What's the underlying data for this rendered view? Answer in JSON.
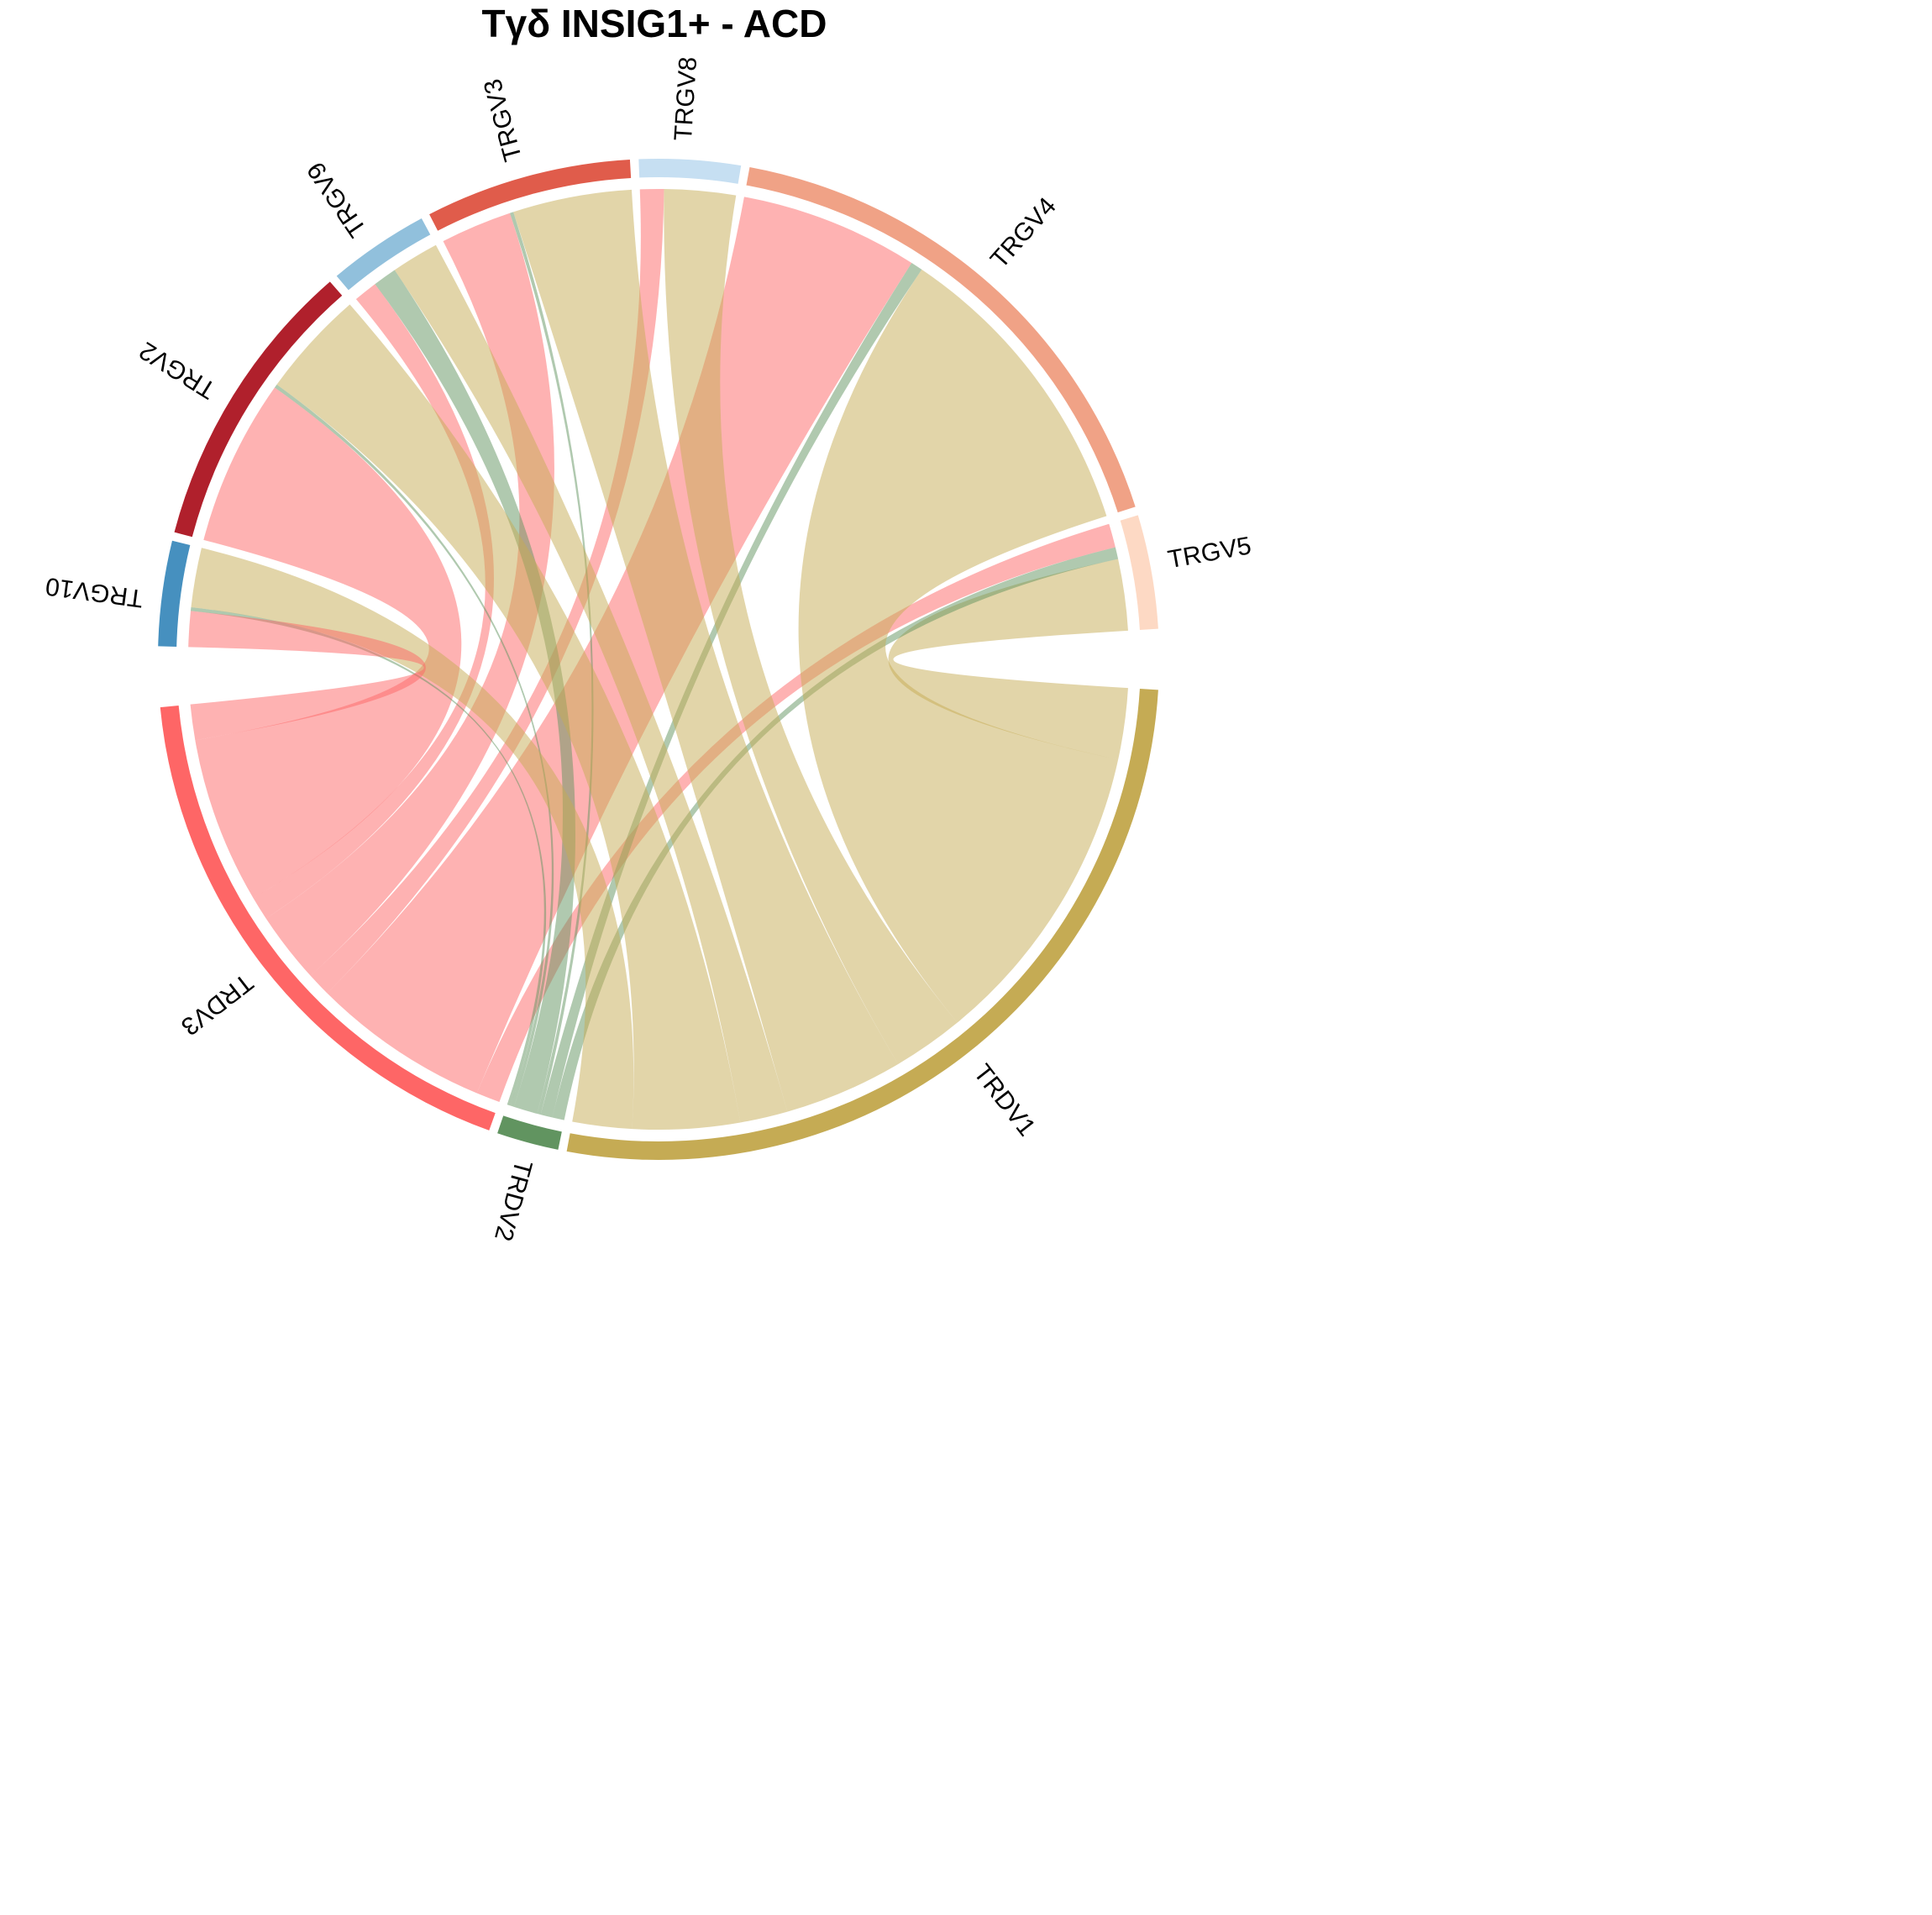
{
  "chart_data": {
    "type": "chord",
    "title": "Tγδ INSIG1+ - ACD",
    "sectors": [
      {
        "name": "TRGV5",
        "color": "#fdd9c4"
      },
      {
        "name": "TRGV4",
        "color": "#f0a286"
      },
      {
        "name": "TRGV8",
        "color": "#c6dff2"
      },
      {
        "name": "TRGV3",
        "color": "#e05c4b"
      },
      {
        "name": "TRGV9",
        "color": "#91c0dc"
      },
      {
        "name": "TRGV2",
        "color": "#b0202c"
      },
      {
        "name": "TRGV10",
        "color": "#4690bf"
      },
      {
        "name": "TRDV3",
        "color": "#fe6666"
      },
      {
        "name": "TRDV2",
        "color": "#619460"
      },
      {
        "name": "TRDV1",
        "color": "#c5ab54"
      }
    ],
    "links": [
      {
        "from": "TRGV5",
        "to": "TRDV1",
        "value": 6
      },
      {
        "from": "TRGV5",
        "to": "TRDV2",
        "value": 1
      },
      {
        "from": "TRGV5",
        "to": "TRDV3",
        "value": 2
      },
      {
        "from": "TRGV4",
        "to": "TRDV1",
        "value": 26
      },
      {
        "from": "TRGV4",
        "to": "TRDV2",
        "value": 1
      },
      {
        "from": "TRGV4",
        "to": "TRDV3",
        "value": 15
      },
      {
        "from": "TRGV8",
        "to": "TRDV1",
        "value": 6
      },
      {
        "from": "TRGV8",
        "to": "TRDV3",
        "value": 2
      },
      {
        "from": "TRGV3",
        "to": "TRDV1",
        "value": 10
      },
      {
        "from": "TRGV3",
        "to": "TRDV2",
        "value": 0.3
      },
      {
        "from": "TRGV3",
        "to": "TRDV3",
        "value": 6
      },
      {
        "from": "TRGV9",
        "to": "TRDV1",
        "value": 4
      },
      {
        "from": "TRGV9",
        "to": "TRDV2",
        "value": 2
      },
      {
        "from": "TRGV9",
        "to": "TRDV3",
        "value": 2
      },
      {
        "from": "TRGV2",
        "to": "TRDV1",
        "value": 9
      },
      {
        "from": "TRGV2",
        "to": "TRDV2",
        "value": 0.3
      },
      {
        "from": "TRGV2",
        "to": "TRDV3",
        "value": 14
      },
      {
        "from": "TRGV10",
        "to": "TRDV1",
        "value": 5
      },
      {
        "from": "TRGV10",
        "to": "TRDV2",
        "value": 0.3
      },
      {
        "from": "TRGV10",
        "to": "TRDV3",
        "value": 3
      }
    ]
  }
}
